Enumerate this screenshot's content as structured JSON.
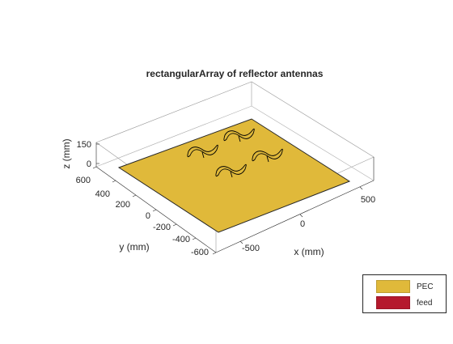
{
  "window": {
    "title": "rectangularArray of reflector antennas"
  },
  "axes": {
    "xlabel": "x (mm)",
    "ylabel": "y (mm)",
    "zlabel": "z (mm)",
    "x_ticks": [
      "-500",
      "0",
      "500"
    ],
    "y_ticks": [
      "600",
      "400",
      "200",
      "0",
      "-200",
      "-400",
      "-600"
    ],
    "z_ticks": [
      "150",
      "0"
    ]
  },
  "legend": {
    "items": [
      {
        "label": "PEC",
        "color": "#e0b93a"
      },
      {
        "label": "feed",
        "color": "#b5192d"
      }
    ]
  },
  "colors": {
    "ground_plane": "#e0b93a",
    "ground_edge": "#262626",
    "dipole": "#000000",
    "box": "#262626",
    "grid": "#dcdcdc"
  }
}
